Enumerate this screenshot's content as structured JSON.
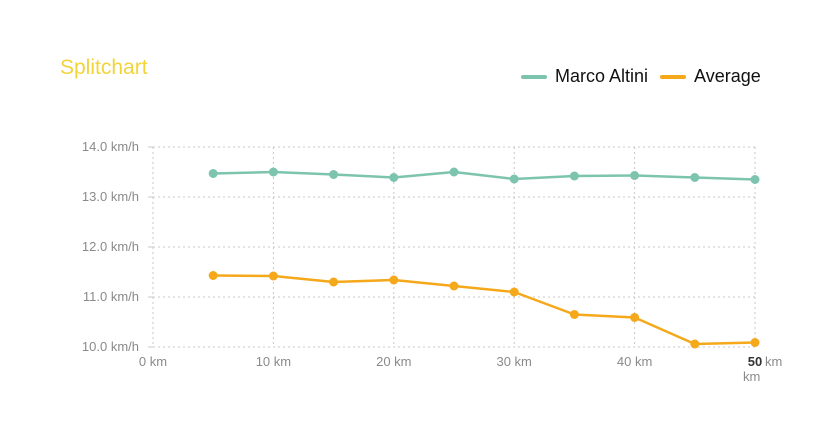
{
  "chart_data": {
    "type": "line",
    "title": "Splitchart",
    "xlabel": "",
    "ylabel": "",
    "x_unit": "km",
    "y_unit": "km/h",
    "xlim": [
      0,
      50
    ],
    "ylim": [
      10.0,
      14.0
    ],
    "grid": true,
    "legend_position": "top-right",
    "x_ticks": [
      0,
      10,
      20,
      30,
      40,
      50
    ],
    "x_tick_labels": [
      "0 km",
      "10 km",
      "20 km",
      "30 km",
      "40 km",
      "50"
    ],
    "y_ticks": [
      10.0,
      11.0,
      12.0,
      13.0,
      14.0
    ],
    "y_tick_labels": [
      "10.0 km/h",
      "11.0 km/h",
      "12.0 km/h",
      "13.0 km/h",
      "14.0 km/h"
    ],
    "x": [
      5,
      10,
      15,
      20,
      25,
      30,
      35,
      40,
      45,
      50
    ],
    "series": [
      {
        "name": "Marco Altini",
        "color": "#7cc4ad",
        "values": [
          13.47,
          13.5,
          13.45,
          13.39,
          13.5,
          13.36,
          13.42,
          13.43,
          13.39,
          13.35
        ]
      },
      {
        "name": "Average",
        "color": "#f5a81a",
        "values": [
          11.43,
          11.42,
          11.3,
          11.34,
          11.22,
          11.1,
          10.65,
          10.59,
          10.06,
          10.09
        ]
      }
    ]
  }
}
